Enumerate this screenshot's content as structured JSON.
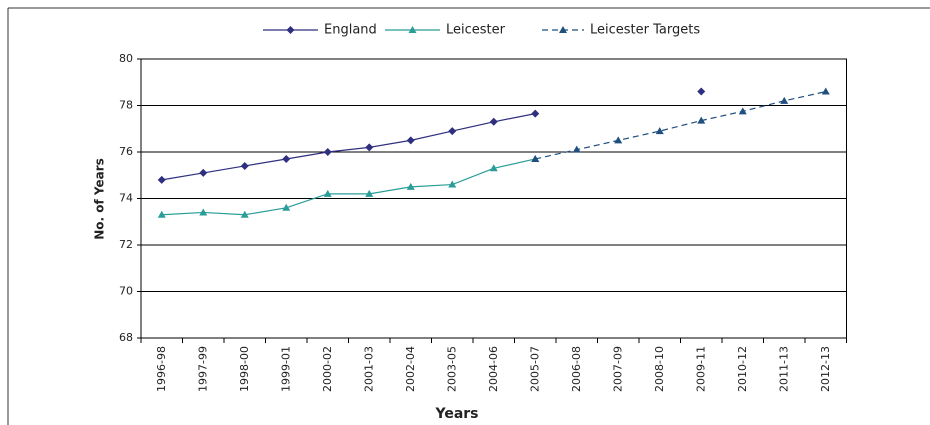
{
  "chart_data": {
    "type": "line",
    "x_label": "Years",
    "y_label": "No. of Years",
    "categories": [
      "1996-98",
      "1997-99",
      "1998-00",
      "1999-01",
      "2000-02",
      "2001-03",
      "2002-04",
      "2003-05",
      "2004-06",
      "2005-07",
      "2006-08",
      "2007-09",
      "2008-10",
      "2009-11",
      "2010-12",
      "2011-13",
      "2012-13"
    ],
    "series": [
      {
        "name": "England",
        "color": "#2e2f7f",
        "marker": "diamond",
        "line_style": "solid",
        "values": [
          74.8,
          75.1,
          75.4,
          75.7,
          76.0,
          76.2,
          76.5,
          76.9,
          77.3,
          77.65,
          null,
          null,
          null,
          78.6,
          null,
          null,
          null
        ]
      },
      {
        "name": "Leicester",
        "color": "#2a9d98",
        "marker": "triangle",
        "line_style": "solid",
        "values": [
          73.3,
          73.4,
          73.3,
          73.6,
          74.2,
          74.2,
          74.5,
          74.6,
          75.3,
          75.7,
          null,
          null,
          null,
          null,
          null,
          null,
          null
        ]
      },
      {
        "name": "Leicester Targets",
        "color": "#1f4f7f",
        "marker": "triangle",
        "line_style": "dashed",
        "values": [
          null,
          null,
          null,
          null,
          null,
          null,
          null,
          null,
          null,
          75.7,
          76.1,
          76.5,
          76.9,
          77.35,
          77.75,
          78.2,
          78.6
        ]
      }
    ],
    "ylim": [
      68,
      80
    ],
    "yticks": [
      68,
      70,
      72,
      74,
      76,
      78,
      80
    ],
    "grid": true,
    "legend": "top"
  }
}
